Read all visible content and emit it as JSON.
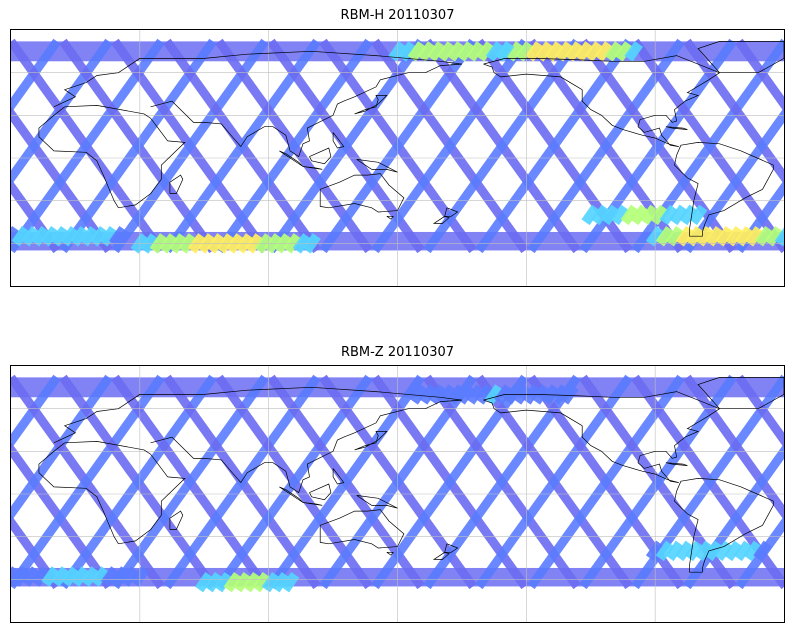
{
  "panels": [
    {
      "title": "RBM-H 20110307",
      "hot_bands": [
        {
          "lon_start": 200,
          "lon_end": 260,
          "lat": 75,
          "level": 0.95
        },
        {
          "lon_start": 150,
          "lon_end": 200,
          "lat": 75,
          "level": 0.7
        },
        {
          "lon_start": -30,
          "lon_end": 20,
          "lat": -55,
          "level": 0.5
        },
        {
          "lon_start": 30,
          "lon_end": 110,
          "lat": -60,
          "level": 0.8
        },
        {
          "lon_start": 270,
          "lon_end": 330,
          "lat": -55,
          "level": 0.95
        },
        {
          "lon_start": 240,
          "lon_end": 290,
          "lat": -40,
          "level": 0.6
        }
      ]
    },
    {
      "title": "RBM-Z 20110307",
      "hot_bands": [
        {
          "lon_start": 270,
          "lon_end": 320,
          "lat": -40,
          "level": 0.45
        },
        {
          "lon_start": 60,
          "lon_end": 100,
          "lat": -62,
          "level": 0.65
        },
        {
          "lon_start": -30,
          "lon_end": 30,
          "lat": -58,
          "level": 0.35
        },
        {
          "lon_start": 160,
          "lon_end": 230,
          "lat": 70,
          "level": 0.3
        }
      ]
    }
  ],
  "map": {
    "projection": "PlateCarree",
    "lon_range": [
      -30,
      330
    ],
    "lat_range": [
      -90,
      90
    ],
    "data_lat_range": [
      -65,
      82
    ],
    "gridlines_lon_step": 60,
    "gridlines_lat_step": 30
  },
  "colors": {
    "background_track": "#6b6cf2",
    "low": "#5a7cff",
    "mid": "#55d4ff",
    "high_mid": "#b4ff7a",
    "high": "#ffef60",
    "peak": "#ff6b4a",
    "coastline": "#000000",
    "gridline": "#bfbfbf"
  }
}
